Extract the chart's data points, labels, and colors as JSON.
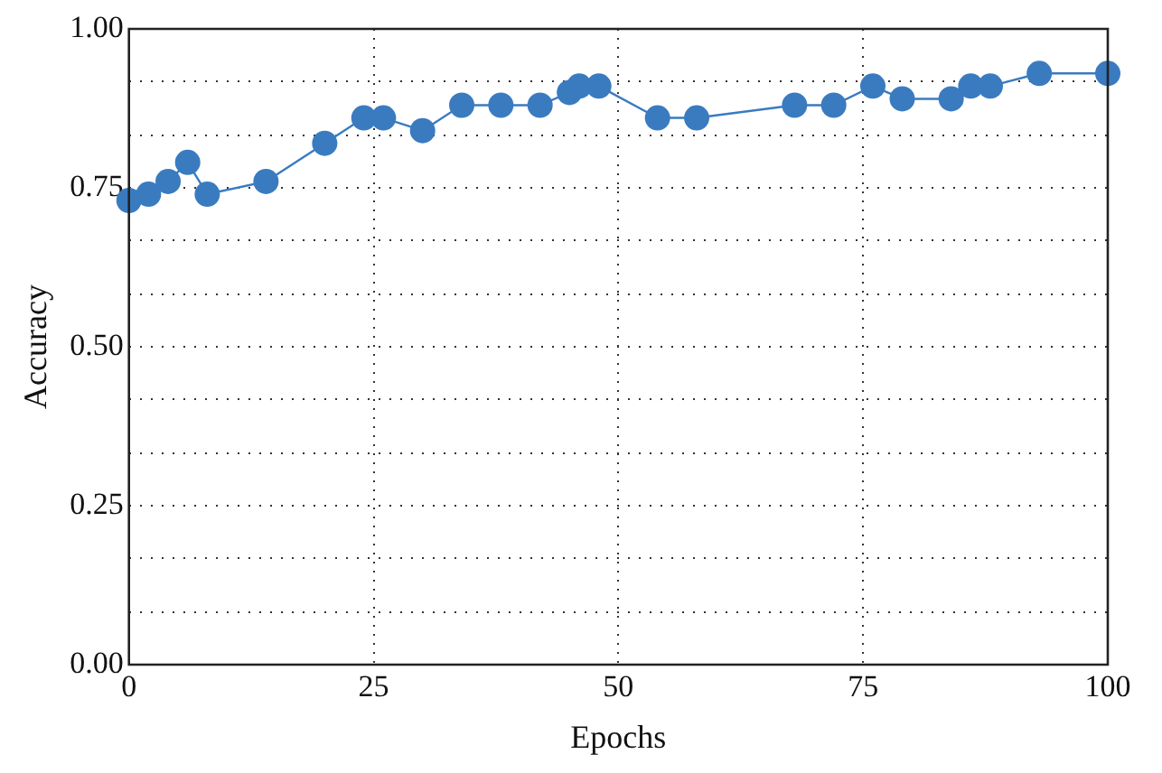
{
  "chart_data": {
    "type": "line",
    "xlabel": "Epochs",
    "ylabel": "Accuracy",
    "x": [
      0,
      2,
      4,
      6,
      8,
      14,
      20,
      24,
      26,
      30,
      34,
      38,
      42,
      45,
      46,
      48,
      54,
      58,
      68,
      72,
      76,
      79,
      84,
      86,
      88,
      93,
      100
    ],
    "series": [
      {
        "color": "#3a7bc0",
        "values": [
          0.73,
          0.74,
          0.76,
          0.79,
          0.74,
          0.76,
          0.82,
          0.86,
          0.86,
          0.84,
          0.88,
          0.88,
          0.88,
          0.9,
          0.91,
          0.91,
          0.86,
          0.86,
          0.88,
          0.88,
          0.91,
          0.89,
          0.89,
          0.91,
          0.91,
          0.93,
          0.93
        ]
      }
    ],
    "xlim": [
      0,
      100
    ],
    "xticks": [
      0,
      25,
      50,
      75,
      100
    ],
    "ylim": [
      0,
      1
    ],
    "yticks": [
      {
        "value": 0,
        "label": "0.00"
      },
      {
        "value": 0.083,
        "label": null
      },
      {
        "value": 0.167,
        "label": null
      },
      {
        "value": 0.25,
        "label": "0.25"
      },
      {
        "value": 0.333,
        "label": null
      },
      {
        "value": 0.417,
        "label": null
      },
      {
        "value": 0.5,
        "label": "0.50"
      },
      {
        "value": 0.583,
        "label": null
      },
      {
        "value": 0.667,
        "label": null
      },
      {
        "value": 0.75,
        "label": "0.75"
      },
      {
        "value": 0.833,
        "label": null
      },
      {
        "value": 0.917,
        "label": null
      },
      {
        "value": 1,
        "label": "1.00"
      }
    ],
    "grid": true,
    "legend": false,
    "marker": "circle",
    "line_style": "solid"
  }
}
